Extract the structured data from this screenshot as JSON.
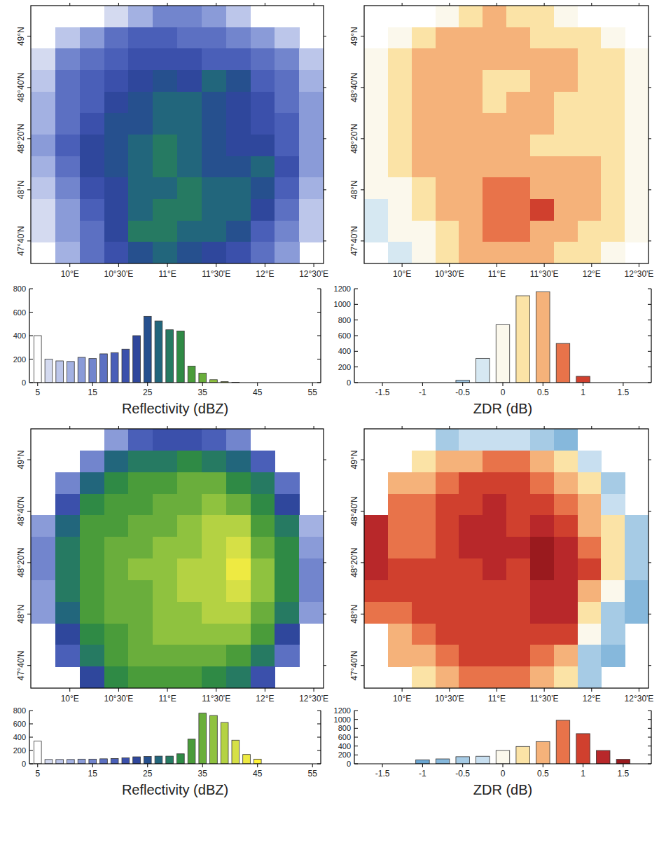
{
  "chart_data": [
    {
      "type": "heatmap",
      "x": [
        9.725,
        9.975,
        10.225,
        10.475,
        10.725,
        10.975,
        11.225,
        11.475,
        11.725,
        11.975,
        12.225,
        12.475
      ],
      "y": [
        49.13,
        48.99,
        48.85,
        48.71,
        48.57,
        48.43,
        48.29,
        48.15,
        48.01,
        47.87,
        47.73,
        47.59
      ],
      "values": [
        [
          null,
          null,
          null,
          6,
          10,
          14,
          14,
          12,
          8,
          null,
          null,
          null
        ],
        [
          null,
          8,
          12,
          16,
          18,
          18,
          16,
          16,
          14,
          12,
          8,
          null
        ],
        [
          6,
          14,
          16,
          18,
          20,
          20,
          20,
          18,
          18,
          16,
          14,
          8
        ],
        [
          8,
          16,
          18,
          20,
          22,
          24,
          22,
          26,
          24,
          18,
          16,
          10
        ],
        [
          10,
          16,
          18,
          22,
          24,
          26,
          26,
          24,
          22,
          20,
          16,
          12
        ],
        [
          10,
          16,
          20,
          24,
          24,
          26,
          26,
          24,
          22,
          20,
          18,
          12
        ],
        [
          12,
          18,
          22,
          24,
          26,
          28,
          26,
          24,
          22,
          22,
          18,
          12
        ],
        [
          10,
          16,
          22,
          24,
          26,
          28,
          26,
          24,
          24,
          26,
          20,
          12
        ],
        [
          8,
          14,
          20,
          22,
          26,
          26,
          28,
          26,
          26,
          24,
          18,
          10
        ],
        [
          6,
          12,
          18,
          22,
          26,
          28,
          28,
          26,
          26,
          22,
          16,
          8
        ],
        [
          6,
          12,
          16,
          22,
          28,
          28,
          26,
          26,
          24,
          18,
          14,
          8
        ],
        [
          null,
          10,
          16,
          20,
          24,
          26,
          24,
          22,
          20,
          16,
          12,
          null
        ]
      ],
      "xlim": [
        9.6,
        12.6
      ],
      "ylim": [
        47.52,
        49.2
      ],
      "xticks": [
        {
          "value": 10,
          "label": "10°E"
        },
        {
          "value": 10.5,
          "label": "10°30'E"
        },
        {
          "value": 11,
          "label": "11°E"
        },
        {
          "value": 11.5,
          "label": "11°30'E"
        },
        {
          "value": 12,
          "label": "12°E"
        },
        {
          "value": 12.5,
          "label": "12°30'E"
        }
      ],
      "yticks": [
        {
          "value": 47.6667,
          "label": "47°40'N"
        },
        {
          "value": 48,
          "label": "48°N"
        },
        {
          "value": 48.3333,
          "label": "48°20'N"
        },
        {
          "value": 48.6667,
          "label": "48°40'N"
        },
        {
          "value": 49,
          "label": "49°N"
        }
      ]
    },
    {
      "type": "histogram",
      "xlabel": "Reflectivity (dBZ)",
      "bins": [
        4,
        6,
        8,
        10,
        12,
        14,
        16,
        18,
        20,
        22,
        24,
        26,
        28,
        30,
        32,
        34,
        36,
        38,
        40,
        42
      ],
      "values": [
        400,
        200,
        185,
        180,
        215,
        205,
        245,
        255,
        285,
        400,
        565,
        525,
        450,
        440,
        140,
        80,
        25,
        8,
        3
      ],
      "colors": [
        "#ffffff",
        "#d4daf0",
        "#bcc6ea",
        "#a3b1e2",
        "#8a9bd8",
        "#7285cd",
        "#5c70c2",
        "#4a5fb8",
        "#3b50ab",
        "#2f479c",
        "#26508e",
        "#22667c",
        "#267a62",
        "#2f8a45",
        "#4a9c3a",
        "#6aae3c",
        "#8fc23f",
        "#b4d243",
        "#d6e046"
      ],
      "xlim": [
        3.5,
        56.5
      ],
      "xticks": [
        5,
        15,
        25,
        35,
        45,
        55
      ],
      "ylim": [
        0,
        800
      ],
      "yticks": [
        0,
        200,
        400,
        600,
        800
      ]
    },
    {
      "type": "heatmap",
      "x": [
        9.725,
        9.975,
        10.225,
        10.475,
        10.725,
        10.975,
        11.225,
        11.475,
        11.725,
        11.975,
        12.225,
        12.475
      ],
      "y": [
        49.13,
        48.99,
        48.85,
        48.71,
        48.57,
        48.43,
        48.29,
        48.15,
        48.01,
        47.87,
        47.73,
        47.59
      ],
      "values": [
        [
          null,
          null,
          null,
          0.1,
          0.3,
          0.4,
          0.3,
          0.3,
          0.1,
          null,
          null,
          null
        ],
        [
          null,
          0.1,
          0.3,
          0.4,
          0.5,
          0.4,
          0.4,
          0.3,
          0.3,
          0.2,
          0.1,
          null
        ],
        [
          0.1,
          0.3,
          0.4,
          0.5,
          0.4,
          0.5,
          0.4,
          0.5,
          0.5,
          0.3,
          0.2,
          0.1
        ],
        [
          0.1,
          0.3,
          0.4,
          0.5,
          0.4,
          0.3,
          0.2,
          0.6,
          0.5,
          0.3,
          0.3,
          0.1
        ],
        [
          0.0,
          0.3,
          0.5,
          0.5,
          0.4,
          0.3,
          0.4,
          0.5,
          0.3,
          0.2,
          0.3,
          0.1
        ],
        [
          0.0,
          0.3,
          0.4,
          0.5,
          0.6,
          0.4,
          0.5,
          0.4,
          0.3,
          0.2,
          0.2,
          0.1
        ],
        [
          0.0,
          0.2,
          0.4,
          0.5,
          0.6,
          0.5,
          0.6,
          0.3,
          0.2,
          0.3,
          0.3,
          0.1
        ],
        [
          0.0,
          0.2,
          0.4,
          0.5,
          0.5,
          0.6,
          0.5,
          0.4,
          0.4,
          0.5,
          0.3,
          0.1
        ],
        [
          -0.1,
          0.1,
          0.3,
          0.5,
          0.6,
          0.7,
          0.8,
          0.6,
          0.5,
          0.4,
          0.3,
          0.1
        ],
        [
          -0.2,
          0.0,
          0.2,
          0.4,
          0.6,
          0.7,
          0.8,
          0.9,
          0.6,
          0.4,
          0.2,
          0.0
        ],
        [
          -0.2,
          -0.1,
          0.0,
          0.3,
          0.5,
          0.7,
          0.7,
          0.6,
          0.5,
          0.3,
          0.2,
          0.0
        ],
        [
          null,
          -0.2,
          -0.1,
          0.2,
          0.4,
          0.5,
          0.5,
          0.4,
          0.3,
          0.2,
          0.1,
          null
        ]
      ],
      "xlim": [
        9.6,
        12.6
      ],
      "ylim": [
        47.52,
        49.2
      ],
      "xticks": [
        {
          "value": 10,
          "label": "10°E"
        },
        {
          "value": 10.5,
          "label": "10°30'E"
        },
        {
          "value": 11,
          "label": "11°E"
        },
        {
          "value": 11.5,
          "label": "11°30'E"
        },
        {
          "value": 12,
          "label": "12°E"
        },
        {
          "value": 12.5,
          "label": "12°30'E"
        }
      ],
      "yticks": [
        {
          "value": 47.6667,
          "label": "47°40'N"
        },
        {
          "value": 48,
          "label": "48°N"
        },
        {
          "value": 48.3333,
          "label": "48°20'N"
        },
        {
          "value": 48.6667,
          "label": "48°40'N"
        },
        {
          "value": 49,
          "label": "49°N"
        }
      ]
    },
    {
      "type": "histogram",
      "xlabel": "ZDR (dB)",
      "bins": [
        -0.625,
        -0.375,
        -0.125,
        0.125,
        0.375,
        0.625,
        0.875,
        1.125
      ],
      "values": [
        30,
        310,
        740,
        1110,
        1160,
        500,
        80
      ],
      "colors": [
        "#9ec5e0",
        "#d6e8f2",
        "#fbf8ec",
        "#fbe3a6",
        "#f5b27a",
        "#e8734a",
        "#d0402e"
      ],
      "xlim": [
        -1.85,
        1.85
      ],
      "xticks": [
        -1.5,
        -1,
        -0.5,
        0,
        0.5,
        1,
        1.5
      ],
      "ylim": [
        0,
        1200
      ],
      "yticks": [
        0,
        200,
        400,
        600,
        800,
        1000,
        1200
      ]
    },
    {
      "type": "heatmap",
      "x": [
        9.725,
        9.975,
        10.225,
        10.475,
        10.725,
        10.975,
        11.225,
        11.475,
        11.725,
        11.975,
        12.225,
        12.475
      ],
      "y": [
        49.13,
        48.99,
        48.85,
        48.71,
        48.57,
        48.43,
        48.29,
        48.15,
        48.01,
        47.87,
        47.73,
        47.59
      ],
      "values": [
        [
          null,
          null,
          null,
          12,
          18,
          20,
          20,
          18,
          14,
          null,
          null,
          null
        ],
        [
          null,
          null,
          14,
          26,
          28,
          28,
          30,
          28,
          26,
          18,
          null,
          null
        ],
        [
          null,
          14,
          26,
          30,
          32,
          32,
          34,
          34,
          30,
          28,
          16,
          null
        ],
        [
          null,
          20,
          30,
          32,
          32,
          34,
          34,
          36,
          34,
          30,
          22,
          null
        ],
        [
          12,
          26,
          32,
          32,
          34,
          34,
          36,
          38,
          38,
          32,
          28,
          10
        ],
        [
          14,
          28,
          32,
          34,
          34,
          36,
          36,
          38,
          40,
          34,
          30,
          12
        ],
        [
          14,
          28,
          32,
          34,
          36,
          36,
          38,
          38,
          42,
          36,
          30,
          14
        ],
        [
          12,
          28,
          32,
          34,
          34,
          36,
          38,
          38,
          40,
          36,
          30,
          14
        ],
        [
          12,
          26,
          32,
          34,
          34,
          36,
          36,
          38,
          38,
          34,
          28,
          12
        ],
        [
          null,
          22,
          30,
          32,
          34,
          36,
          36,
          36,
          36,
          32,
          22,
          null
        ],
        [
          null,
          18,
          28,
          32,
          34,
          34,
          34,
          34,
          32,
          28,
          16,
          null
        ],
        [
          null,
          null,
          22,
          30,
          32,
          32,
          32,
          30,
          28,
          20,
          null,
          null
        ]
      ],
      "xlim": [
        9.6,
        12.6
      ],
      "ylim": [
        47.52,
        49.2
      ],
      "xticks": [
        {
          "value": 10,
          "label": "10°E"
        },
        {
          "value": 10.5,
          "label": "10°30'E"
        },
        {
          "value": 11,
          "label": "11°E"
        },
        {
          "value": 11.5,
          "label": "11°30'E"
        },
        {
          "value": 12,
          "label": "12°E"
        },
        {
          "value": 12.5,
          "label": "12°30'E"
        }
      ],
      "yticks": [
        {
          "value": 47.6667,
          "label": "47°40'N"
        },
        {
          "value": 48,
          "label": "48°N"
        },
        {
          "value": 48.3333,
          "label": "48°20'N"
        },
        {
          "value": 48.6667,
          "label": "48°40'N"
        },
        {
          "value": 49,
          "label": "49°N"
        }
      ]
    },
    {
      "type": "histogram",
      "xlabel": "Reflectivity (dBZ)",
      "bins": [
        4,
        6,
        8,
        10,
        12,
        14,
        16,
        18,
        20,
        22,
        24,
        26,
        28,
        30,
        32,
        34,
        36,
        38,
        40,
        42,
        44,
        46
      ],
      "values": [
        340,
        65,
        65,
        65,
        70,
        70,
        75,
        80,
        90,
        105,
        110,
        115,
        115,
        150,
        370,
        760,
        725,
        620,
        355,
        140,
        70
      ],
      "colors": [
        "#ffffff",
        "#d4daf0",
        "#bcc6ea",
        "#a3b1e2",
        "#8a9bd8",
        "#7285cd",
        "#5c70c2",
        "#4a5fb8",
        "#3b50ab",
        "#2f479c",
        "#26508e",
        "#22667c",
        "#267a62",
        "#2f8a45",
        "#4a9c3a",
        "#6aae3c",
        "#8fc23f",
        "#b4d243",
        "#d6e046",
        "#eeea42",
        "#fff43a"
      ],
      "xlim": [
        3.5,
        56.5
      ],
      "xticks": [
        5,
        15,
        25,
        35,
        45,
        55
      ],
      "ylim": [
        0,
        800
      ],
      "yticks": [
        0,
        200,
        400,
        600,
        800
      ]
    },
    {
      "type": "heatmap",
      "x": [
        9.725,
        9.975,
        10.225,
        10.475,
        10.725,
        10.975,
        11.225,
        11.475,
        11.725,
        11.975,
        12.225,
        12.475
      ],
      "y": [
        49.13,
        48.99,
        48.85,
        48.71,
        48.57,
        48.43,
        48.29,
        48.15,
        48.01,
        47.87,
        47.73,
        47.59
      ],
      "values": [
        [
          null,
          null,
          null,
          -0.5,
          -0.3,
          -0.3,
          -0.3,
          -0.5,
          -0.7,
          null,
          null,
          null
        ],
        [
          null,
          null,
          0.2,
          0.5,
          0.6,
          0.8,
          0.7,
          0.5,
          0.2,
          -0.3,
          null,
          null
        ],
        [
          null,
          0.6,
          0.6,
          0.8,
          0.9,
          1.0,
          0.9,
          0.8,
          0.6,
          0.3,
          -0.5,
          null
        ],
        [
          null,
          0.8,
          0.8,
          0.9,
          1.1,
          1.2,
          1.0,
          1.0,
          0.8,
          0.4,
          -0.2,
          null
        ],
        [
          1.2,
          0.8,
          0.8,
          0.9,
          1.2,
          1.3,
          1.1,
          1.2,
          1.0,
          0.5,
          0.2,
          -0.6
        ],
        [
          1.3,
          0.8,
          0.8,
          1.0,
          1.2,
          1.3,
          1.2,
          1.4,
          1.2,
          0.8,
          0.3,
          -0.6
        ],
        [
          1.2,
          0.9,
          0.9,
          1.0,
          1.1,
          1.2,
          1.1,
          1.5,
          1.3,
          0.9,
          0.3,
          -0.5
        ],
        [
          1.0,
          0.9,
          0.9,
          1.0,
          1.1,
          1.1,
          1.1,
          1.3,
          1.3,
          0.6,
          0.0,
          -0.7
        ],
        [
          0.8,
          0.8,
          0.9,
          1.0,
          1.0,
          1.1,
          1.0,
          1.2,
          1.2,
          0.3,
          -0.4,
          -0.8
        ],
        [
          null,
          0.6,
          0.8,
          0.9,
          1.0,
          1.0,
          1.0,
          1.1,
          0.9,
          0.0,
          -0.6,
          null
        ],
        [
          null,
          0.4,
          0.6,
          0.8,
          0.9,
          0.9,
          0.9,
          0.8,
          0.5,
          -0.4,
          -0.8,
          null
        ],
        [
          null,
          null,
          0.3,
          0.6,
          0.7,
          0.8,
          0.7,
          0.5,
          0.2,
          -0.6,
          null,
          null
        ]
      ],
      "xlim": [
        9.6,
        12.6
      ],
      "ylim": [
        47.52,
        49.2
      ],
      "xticks": [
        {
          "value": 10,
          "label": "10°E"
        },
        {
          "value": 10.5,
          "label": "10°30'E"
        },
        {
          "value": 11,
          "label": "11°E"
        },
        {
          "value": 11.5,
          "label": "11°30'E"
        },
        {
          "value": 12,
          "label": "12°E"
        },
        {
          "value": 12.5,
          "label": "12°30'E"
        }
      ],
      "yticks": [
        {
          "value": 47.6667,
          "label": "47°40'N"
        },
        {
          "value": 48,
          "label": "48°N"
        },
        {
          "value": 48.3333,
          "label": "48°20'N"
        },
        {
          "value": 48.6667,
          "label": "48°40'N"
        },
        {
          "value": 49,
          "label": "49°N"
        }
      ]
    },
    {
      "type": "histogram",
      "xlabel": "ZDR (dB)",
      "bins": [
        -1.125,
        -0.875,
        -0.625,
        -0.375,
        -0.125,
        0.125,
        0.375,
        0.625,
        0.875,
        1.125,
        1.375,
        1.625
      ],
      "values": [
        90,
        110,
        160,
        170,
        300,
        390,
        500,
        980,
        680,
        300,
        100
      ],
      "colors": [
        "#6aa6d2",
        "#86b8dc",
        "#a6cbe5",
        "#c8dff0",
        "#fbf8ec",
        "#fbe3a6",
        "#f5b27a",
        "#e8734a",
        "#d0402e",
        "#b8282a",
        "#9a1a1e"
      ],
      "xlim": [
        -1.85,
        1.85
      ],
      "xticks": [
        -1.5,
        -1,
        -0.5,
        0,
        0.5,
        1,
        1.5
      ],
      "ylim": [
        0,
        1200
      ],
      "yticks": [
        0,
        200,
        400,
        600,
        800,
        1000,
        1200
      ]
    }
  ]
}
